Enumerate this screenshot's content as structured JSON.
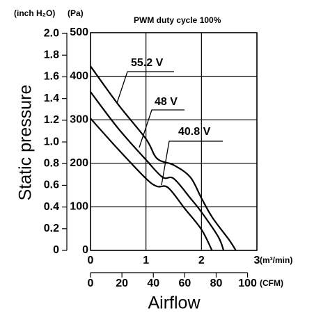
{
  "chart_data": {
    "type": "line",
    "title": "PWM duty cycle 100%",
    "y_label": "Static pressure",
    "x_label": "Airflow",
    "y_unit": "(Pa)",
    "y2_unit": "(inch H₂O)",
    "x_unit": "(m³/min)",
    "x2_unit": "(CFM)",
    "xlim": [
      0,
      3
    ],
    "xticks": [
      0,
      1,
      2,
      3
    ],
    "x2lim": [
      0,
      105.94
    ],
    "x2ticks": [
      0,
      20,
      40,
      60,
      80,
      100
    ],
    "ylim": [
      0,
      500
    ],
    "yticks": [
      0,
      100,
      200,
      300,
      400,
      500
    ],
    "y2lim": [
      0,
      2.007
    ],
    "y2ticks": [
      0,
      0.2,
      0.4,
      0.6,
      0.8,
      {
        "value": 1.0,
        "label": "1.0"
      },
      1.2,
      1.4,
      1.6,
      1.8,
      {
        "value": 2.0,
        "label": "2.0"
      }
    ],
    "grid": true,
    "series": [
      {
        "name": "55.2 V",
        "color": "#000000",
        "x": [
          0,
          0.5,
          1.0,
          1.2,
          1.5,
          1.8,
          2.0,
          2.2,
          2.5,
          2.62
        ],
        "values": [
          423,
          335,
          256,
          211,
          196,
          168,
          120,
          75,
          24,
          0
        ]
      },
      {
        "name": "48 V",
        "color": "#000000",
        "x": [
          0,
          0.5,
          1.0,
          1.3,
          1.5,
          1.8,
          2.0,
          2.3,
          2.4
        ],
        "values": [
          364,
          280,
          208,
          168,
          165,
          120,
          88,
          32,
          0
        ]
      },
      {
        "name": "40.8 V",
        "color": "#000000",
        "x": [
          0,
          0.5,
          1.0,
          1.2,
          1.4,
          1.7,
          2.0,
          2.19
        ],
        "values": [
          303,
          232,
          165,
          147,
          144,
          96,
          48,
          0
        ]
      }
    ]
  }
}
